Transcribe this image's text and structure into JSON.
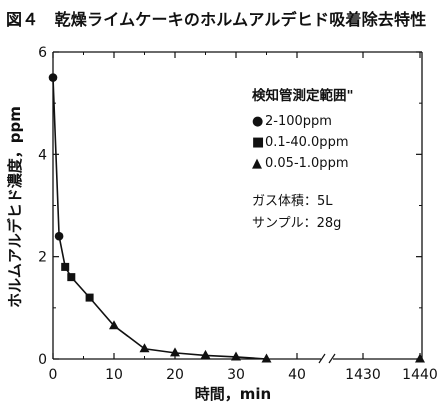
{
  "figure_title": "図４　乾燥ライムケーキのホルムアルデヒド吸着除去特性",
  "chart_data": {
    "type": "line",
    "xlabel": "時間，min",
    "ylabel": "ホルムアルデヒド濃度，ppm",
    "xlim": [
      0,
      40
    ],
    "ylim": [
      0,
      6
    ],
    "x_ticks": [
      "0",
      "10",
      "20",
      "30",
      "40",
      "1430",
      "1440"
    ],
    "y_ticks": [
      "0",
      "2",
      "4",
      "6"
    ],
    "x_axis_break": true,
    "grid": false,
    "series": [
      {
        "name": "2-100ppm",
        "marker": "circle",
        "points": [
          [
            0,
            5.5
          ],
          [
            1,
            2.4
          ]
        ]
      },
      {
        "name": "0.1-40.0ppm",
        "marker": "square",
        "points": [
          [
            2,
            1.8
          ],
          [
            3,
            1.6
          ],
          [
            6,
            1.2
          ]
        ]
      },
      {
        "name": "0.05-1.0ppm",
        "marker": "triangle",
        "points": [
          [
            10,
            0.65
          ],
          [
            15,
            0.2
          ],
          [
            20,
            0.12
          ],
          [
            25,
            0.07
          ],
          [
            30,
            0.04
          ],
          [
            35,
            0.0
          ],
          [
            1440,
            0.0
          ]
        ]
      }
    ],
    "legend": {
      "title": "検知管測定範囲\"",
      "position": "top-right",
      "entries": [
        {
          "symbol": "●",
          "text": "2-100ppm"
        },
        {
          "symbol": "■",
          "text": "0.1-40.0ppm"
        },
        {
          "symbol": "▲",
          "text": "0.05-1.0ppm"
        }
      ]
    },
    "notes": [
      "ガス体積：5L",
      "サンプル：28g"
    ],
    "break_symbol": "≈"
  }
}
